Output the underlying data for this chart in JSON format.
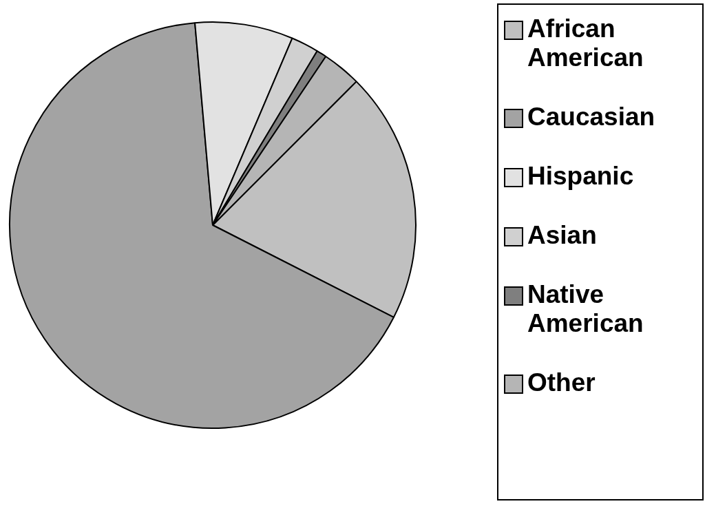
{
  "chart_data": {
    "type": "pie",
    "categories": [
      "African\nAmerican",
      "Caucasian",
      "Hispanic",
      "Asian",
      "Native\nAmerican",
      "Other"
    ],
    "values": [
      20.0,
      66.1,
      7.8,
      2.2,
      0.8,
      3.1
    ],
    "colors": [
      "#c0c0c0",
      "#a3a3a3",
      "#e2e2e2",
      "#d0d0d0",
      "#7f7f7f",
      "#b5b5b5"
    ],
    "legend": "right"
  }
}
